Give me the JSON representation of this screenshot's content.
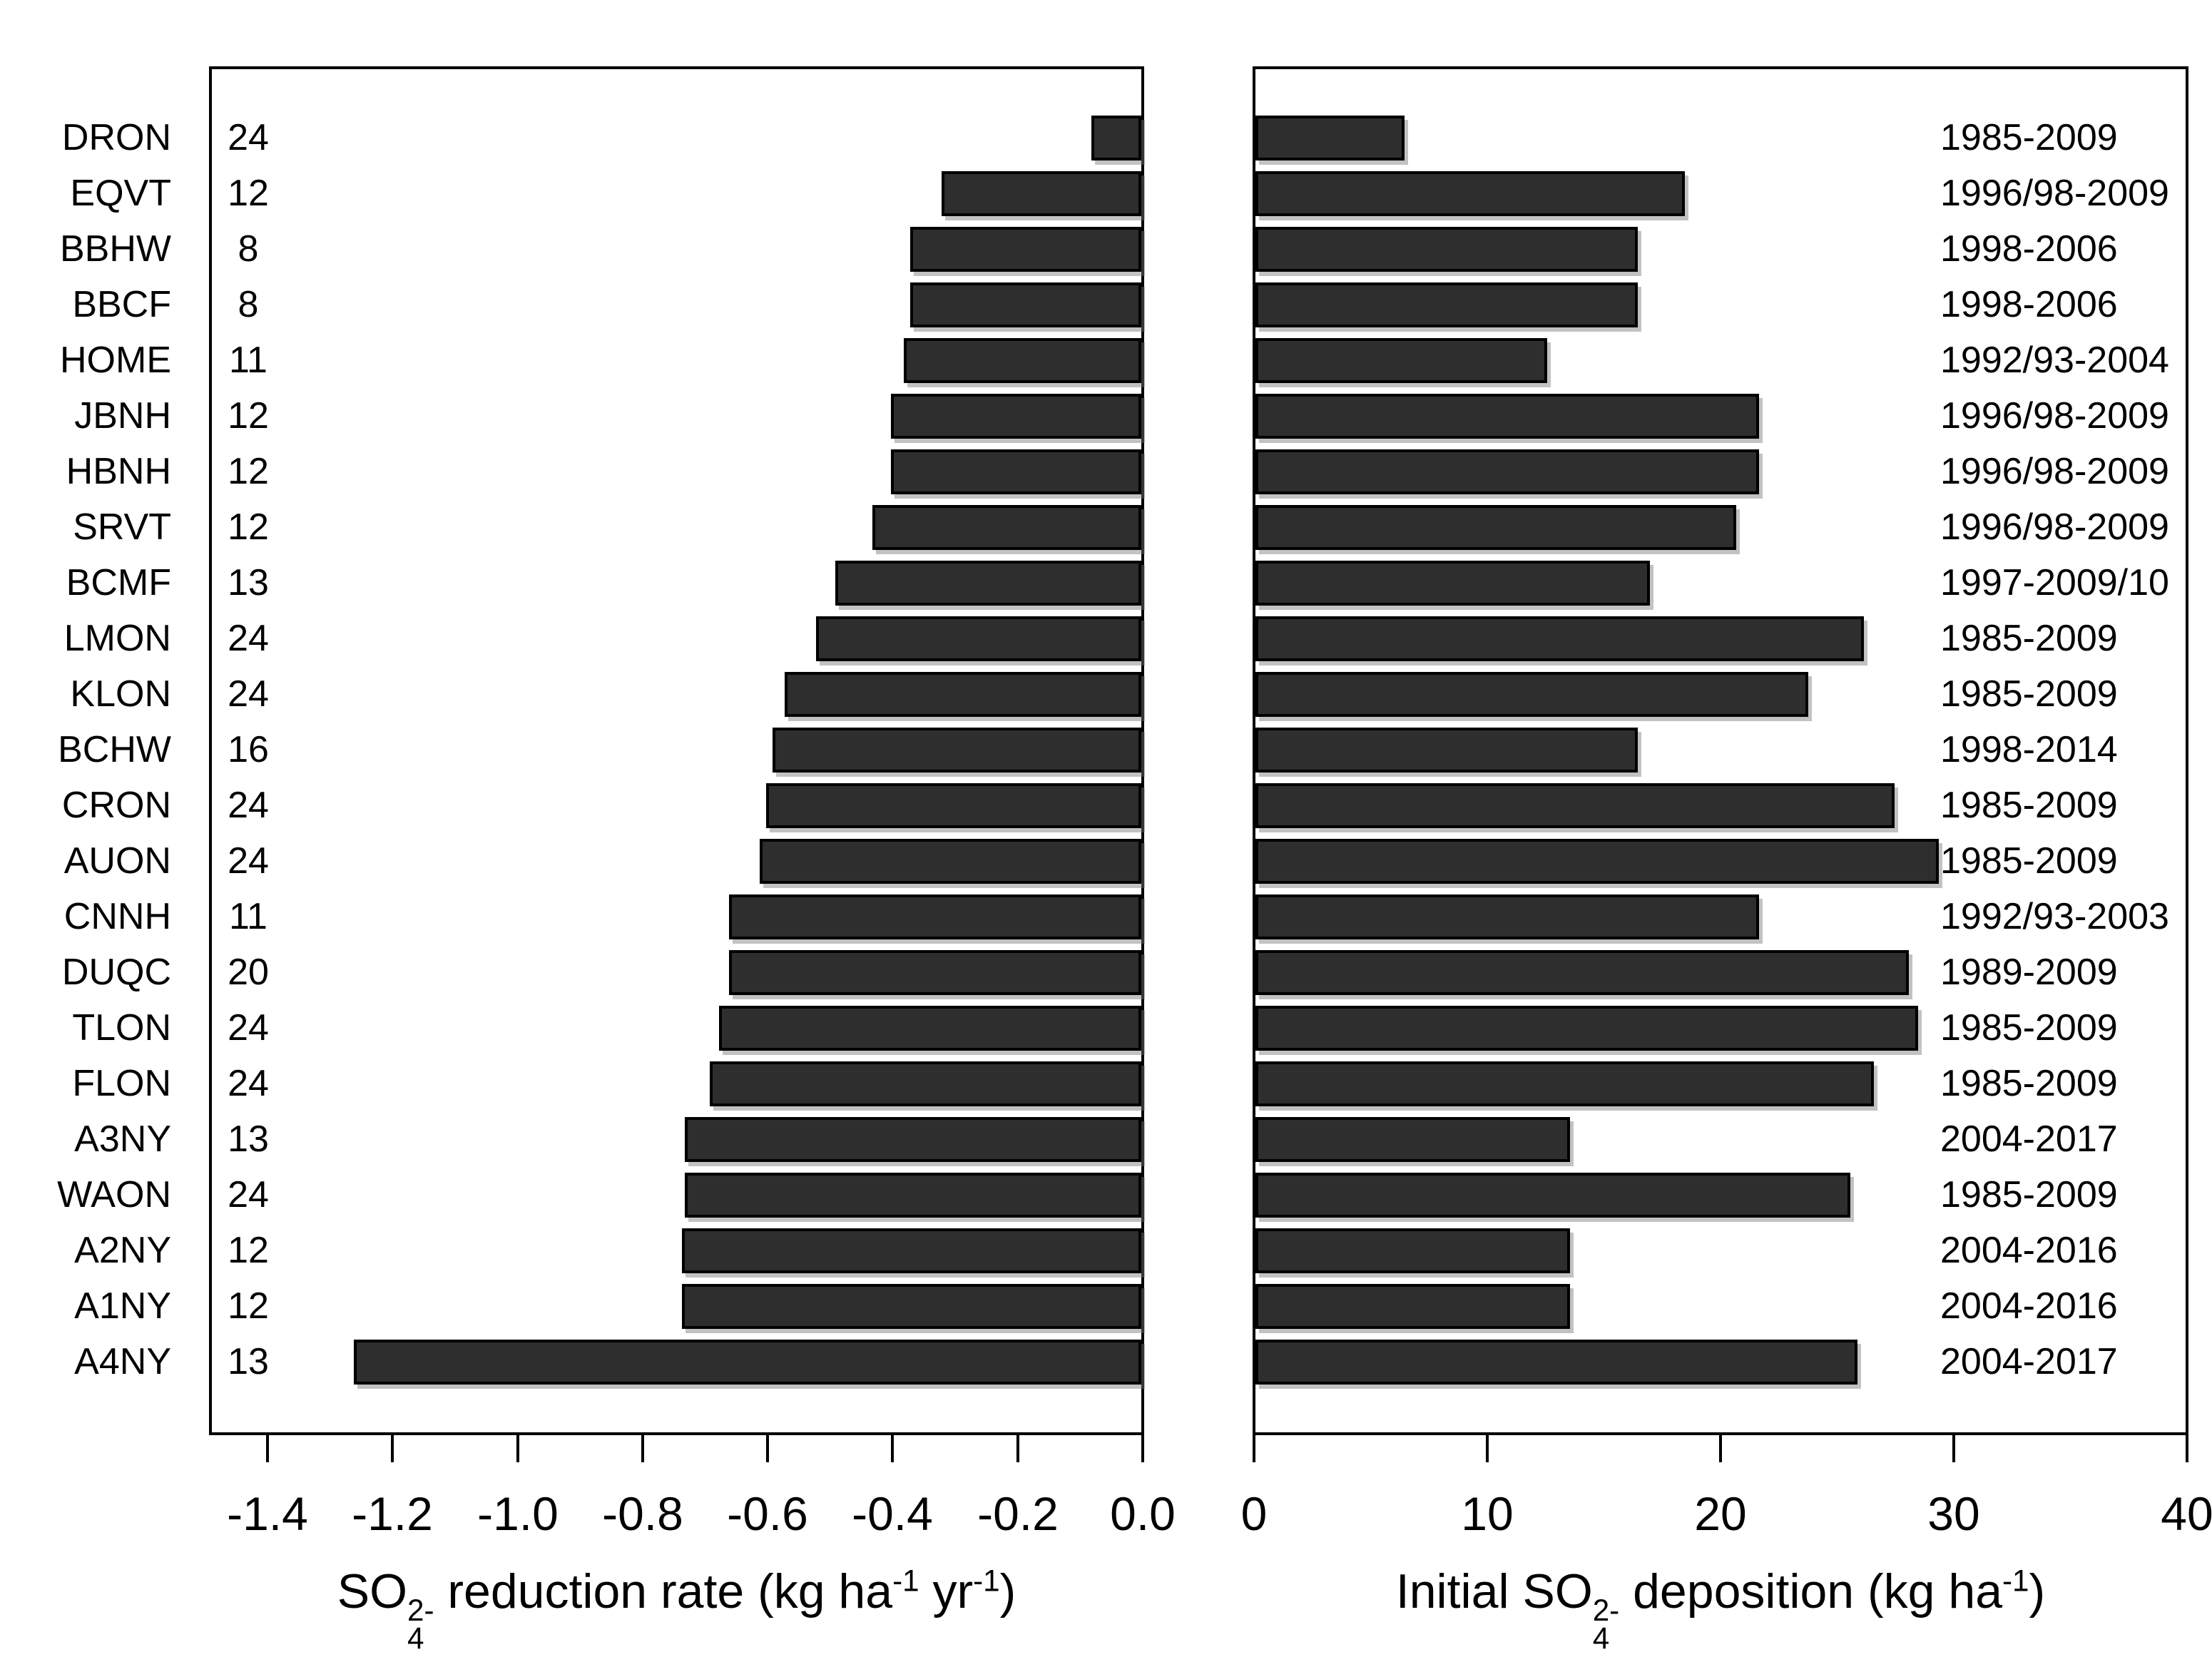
{
  "figure": {
    "background": "#ffffff",
    "bar_fill": "#2e2e2e",
    "bar_border": "#000000",
    "axis_color": "#000000"
  },
  "left_title": {
    "pre": "SO",
    "sub": "4",
    "sup": "2-",
    "mid": " reduction rate (kg ha",
    "sup1": "-1",
    "mid2": " yr",
    "sup2": "-1",
    "end": ")"
  },
  "right_title": {
    "pre": "Initial SO",
    "sub": "4",
    "sup": "2-",
    "mid": " deposition (kg ha",
    "sup1": "-1",
    "end": ")"
  },
  "chart_data": {
    "type": "bar",
    "orientation": "horizontal",
    "grid": false,
    "bar_color": "#2e2e2e",
    "categories": [
      "DRON",
      "EQVT",
      "BBHW",
      "BBCF",
      "HOME",
      "JBNH",
      "HBNH",
      "SRVT",
      "BCMF",
      "LMON",
      "KLON",
      "BCHW",
      "CRON",
      "AUON",
      "CNNH",
      "DUQC",
      "TLON",
      "FLON",
      "A3NY",
      "WAON",
      "A2NY",
      "A1NY",
      "A4NY"
    ],
    "n_years": [
      24,
      12,
      8,
      8,
      11,
      12,
      12,
      12,
      13,
      24,
      24,
      16,
      24,
      24,
      11,
      20,
      24,
      24,
      13,
      24,
      12,
      12,
      13
    ],
    "periods": [
      "1985-2009",
      "1996/98-2009",
      "1998-2006",
      "1998-2006",
      "1992/93-2004",
      "1996/98-2009",
      "1996/98-2009",
      "1996/98-2009",
      "1997-2009/10",
      "1985-2009",
      "1985-2009",
      "1998-2014",
      "1985-2009",
      "1985-2009",
      "1992/93-2003",
      "1989-2009",
      "1985-2009",
      "1985-2009",
      "2004-2017",
      "1985-2009",
      "2004-2016",
      "2004-2016",
      "2004-2017"
    ],
    "series": [
      {
        "name": "SO4 reduction rate",
        "panel": "left",
        "xlabel": "SO₄²⁻ reduction rate (kg ha⁻¹ yr⁻¹)",
        "units": "kg ha-1 yr-1",
        "xlim": [
          -1.5,
          0.0
        ],
        "ticks": [
          -1.4,
          -1.2,
          -1.0,
          -0.8,
          -0.6,
          -0.4,
          -0.2,
          0.0
        ],
        "tick_labels": [
          "-1.4",
          "-1.2",
          "-1.0",
          "-0.8",
          "-0.6",
          "-0.4",
          "-0.2",
          "0.0"
        ],
        "values": [
          -0.08,
          -0.32,
          -0.37,
          -0.37,
          -0.38,
          -0.4,
          -0.4,
          -0.43,
          -0.49,
          -0.52,
          -0.57,
          -0.59,
          -0.6,
          -0.61,
          -0.66,
          -0.66,
          -0.675,
          -0.69,
          -0.73,
          -0.73,
          -0.735,
          -0.735,
          -1.26
        ]
      },
      {
        "name": "Initial SO4 deposition",
        "panel": "right",
        "xlabel": "Initial SO₄²⁻ deposition (kg ha⁻¹)",
        "units": "kg ha-1",
        "xlim": [
          0,
          40
        ],
        "ticks": [
          0,
          10,
          20,
          30,
          40
        ],
        "tick_labels": [
          "0",
          "10",
          "20",
          "30",
          "40"
        ],
        "values": [
          6.4,
          18.4,
          16.4,
          16.4,
          12.5,
          21.6,
          21.6,
          20.6,
          16.9,
          26.1,
          23.7,
          16.4,
          27.4,
          29.3,
          21.6,
          28.0,
          28.4,
          26.5,
          13.5,
          25.5,
          13.5,
          13.5,
          25.8
        ]
      }
    ]
  }
}
